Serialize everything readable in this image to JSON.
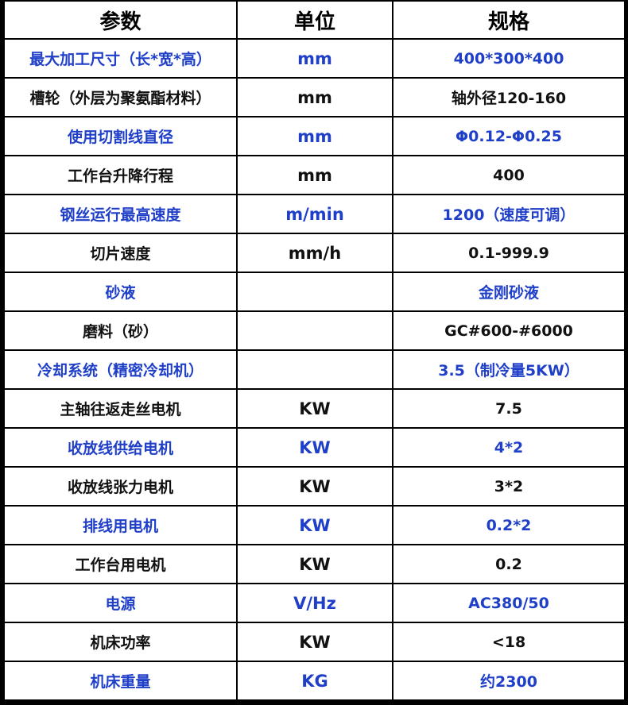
{
  "table": {
    "header": [
      "参数",
      "单位",
      "规格"
    ],
    "rows": [
      [
        "最大加工尺寸（长*宽*高）",
        "mm",
        "400*300*400"
      ],
      [
        "槽轮（外层为聚氨酯材料）",
        "mm",
        "轴外径120-160"
      ],
      [
        "使用切割线直径",
        "mm",
        "Φ0.12-Φ0.25"
      ],
      [
        "工作台升降行程",
        "mm",
        "400"
      ],
      [
        "钢丝运行最高速度",
        "m/min",
        "1200（速度可调）"
      ],
      [
        "切片速度",
        "mm/h",
        "0.1-999.9"
      ],
      [
        "砂液",
        null,
        "金刚砂液"
      ],
      [
        "磨料（砂）",
        null,
        "GC#600-#6000"
      ],
      [
        "冷却系统（精密冷却机）",
        null,
        "3.5（制冷量5KW）"
      ],
      [
        "主轴往返走丝电机",
        "KW",
        "7.5"
      ],
      [
        "收放线供给电机",
        "KW",
        "4*2"
      ],
      [
        "收放线张力电机",
        "KW",
        "3*2"
      ],
      [
        "排线用电机",
        "KW",
        "0.2*2"
      ],
      [
        "工作台用电机",
        "KW",
        "0.2"
      ],
      [
        "电源",
        "V/Hz",
        "AC380/50"
      ],
      [
        "机床功率",
        "KW",
        "<18"
      ],
      [
        "机床重量",
        "KG",
        "约2300"
      ]
    ]
  }
}
